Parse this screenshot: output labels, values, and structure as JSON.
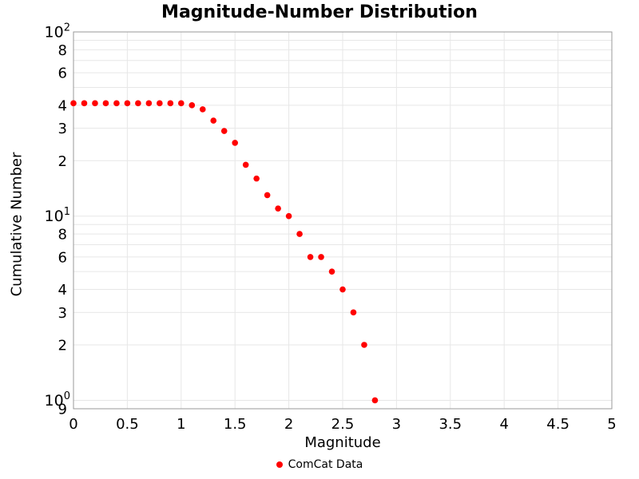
{
  "title": "Magnitude-Number Distribution",
  "chart_data": {
    "type": "scatter",
    "title": "Magnitude-Number Distribution",
    "xlabel": "Magnitude",
    "ylabel": "Cumulative Number",
    "series_name": "ComCat Data",
    "marker_color": "#ff0000",
    "yscale": "log",
    "xlim": [
      0,
      5
    ],
    "ylim": [
      0.9,
      100
    ],
    "grid": true,
    "legend_position": "bottom-center",
    "x": [
      0.0,
      0.1,
      0.2,
      0.3,
      0.4,
      0.5,
      0.6,
      0.7,
      0.8,
      0.9,
      1.0,
      1.1,
      1.2,
      1.3,
      1.4,
      1.5,
      1.6,
      1.7,
      1.8,
      1.9,
      2.0,
      2.1,
      2.2,
      2.3,
      2.4,
      2.5,
      2.6,
      2.7,
      2.8
    ],
    "y": [
      41,
      41,
      41,
      41,
      41,
      41,
      41,
      41,
      41,
      41,
      41,
      40,
      38,
      33,
      29,
      25,
      19,
      16,
      13,
      11,
      10,
      8,
      6,
      6,
      5,
      4,
      3,
      2,
      1
    ],
    "x_ticks": [
      {
        "v": 0,
        "label": "0"
      },
      {
        "v": 0.5,
        "label": "0.5"
      },
      {
        "v": 1,
        "label": "1"
      },
      {
        "v": 1.5,
        "label": "1.5"
      },
      {
        "v": 2,
        "label": "2"
      },
      {
        "v": 2.5,
        "label": "2.5"
      },
      {
        "v": 3,
        "label": "3"
      },
      {
        "v": 3.5,
        "label": "3.5"
      },
      {
        "v": 4,
        "label": "4"
      },
      {
        "v": 4.5,
        "label": "4.5"
      },
      {
        "v": 5,
        "label": "5"
      }
    ],
    "y_ticks": [
      {
        "v": 100,
        "label": "10",
        "exp": "2"
      },
      {
        "v": 80,
        "label": "8"
      },
      {
        "v": 60,
        "label": "6"
      },
      {
        "v": 40,
        "label": "4"
      },
      {
        "v": 30,
        "label": "3"
      },
      {
        "v": 20,
        "label": "2"
      },
      {
        "v": 10,
        "label": "10",
        "exp": "1"
      },
      {
        "v": 8,
        "label": "8"
      },
      {
        "v": 6,
        "label": "6"
      },
      {
        "v": 4,
        "label": "4"
      },
      {
        "v": 3,
        "label": "3"
      },
      {
        "v": 2,
        "label": "2"
      },
      {
        "v": 1,
        "label": "10",
        "exp": "0"
      },
      {
        "v": 0.9,
        "label": "9"
      }
    ],
    "y_grid": [
      0.9,
      1,
      2,
      3,
      4,
      5,
      6,
      7,
      8,
      9,
      10,
      20,
      30,
      40,
      50,
      60,
      70,
      80,
      90,
      100
    ],
    "colors": {
      "grid": "#e7e7e7",
      "frame": "#9a9a9a",
      "text": "#000000"
    }
  }
}
